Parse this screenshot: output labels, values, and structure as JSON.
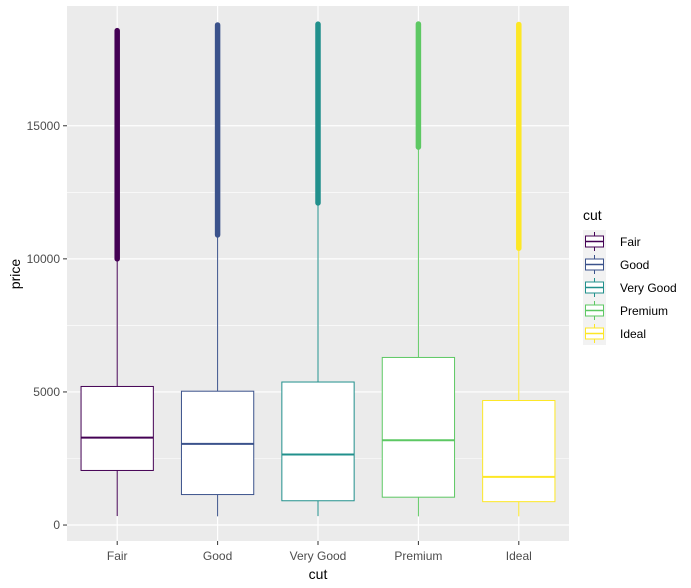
{
  "chart_data": {
    "type": "boxplot",
    "title": "",
    "xlabel": "cut",
    "ylabel": "price",
    "ylim": [
      -600,
      19500
    ],
    "yticks": [
      0,
      5000,
      10000,
      15000
    ],
    "ytick_labels": [
      "0",
      "5000",
      "10000",
      "15000"
    ],
    "legend": {
      "title": "cut",
      "placement": "right",
      "items": [
        "Fair",
        "Good",
        "Very Good",
        "Premium",
        "Ideal"
      ]
    },
    "categories": [
      "Fair",
      "Good",
      "Very Good",
      "Premium",
      "Ideal"
    ],
    "colors": [
      "#440154",
      "#3b528b",
      "#21908c",
      "#5dc863",
      "#fde725"
    ],
    "boxes": [
      {
        "name": "Fair",
        "min": 337,
        "q1": 2050,
        "median": 3282,
        "q3": 5206,
        "whisker_high": 9950,
        "outlier_low": 10000,
        "max": 18574
      },
      {
        "name": "Good",
        "min": 327,
        "q1": 1145,
        "median": 3051,
        "q3": 5028,
        "whisker_high": 10850,
        "outlier_low": 10900,
        "max": 18788
      },
      {
        "name": "Very Good",
        "min": 336,
        "q1": 912,
        "median": 2648,
        "q3": 5373,
        "whisker_high": 12050,
        "outlier_low": 12100,
        "max": 18818
      },
      {
        "name": "Premium",
        "min": 326,
        "q1": 1046,
        "median": 3185,
        "q3": 6296,
        "whisker_high": 14150,
        "outlier_low": 14200,
        "max": 18823
      },
      {
        "name": "Ideal",
        "min": 326,
        "q1": 878,
        "median": 1810,
        "q3": 4678,
        "whisker_high": 10350,
        "outlier_low": 10400,
        "max": 18806
      }
    ],
    "grid": true
  }
}
